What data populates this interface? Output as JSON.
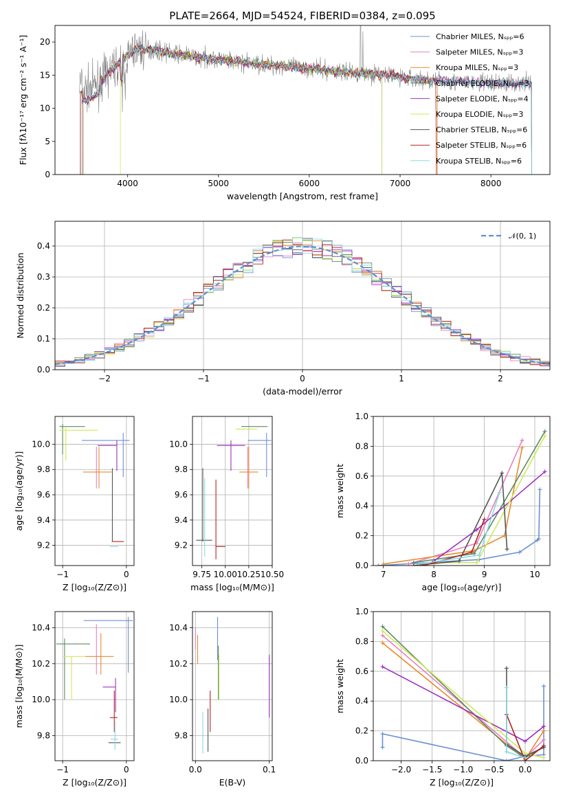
{
  "colors": [
    "#6b8fd6",
    "#e87fbf",
    "#e8892e",
    "#5e8a62",
    "#9b30c0",
    "#cde85a",
    "#555555",
    "#b22222",
    "#88d8e0"
  ],
  "chart_data": [
    {
      "id": "spectrum",
      "type": "line",
      "title": "PLATE=2664, MJD=54524, FIBERID=0384, z=0.095",
      "xlabel": "wavelength [Angstrom, rest frame]",
      "ylabel": "Flux [fλ10⁻¹⁷ erg cm⁻² s⁻¹ A⁻¹]",
      "xlim": [
        3200,
        8650
      ],
      "ylim": [
        0,
        22.5
      ],
      "xticks": [
        4000,
        5000,
        6000,
        7000,
        8000
      ],
      "yticks": [
        0,
        5,
        10,
        15,
        20
      ],
      "grid": false,
      "legend_position": "top-right",
      "legend": [
        "Chabrier MILES, Nₛₚₚ=6",
        "Salpeter MILES, Nₛₚₚ=3",
        "Kroupa MILES, Nₛₚₚ=3",
        "Chabrier ELODIE, Nₛₚₚ=3",
        "Salpeter ELODIE, Nₛₚₚ=4",
        "Kroupa ELODIE, Nₛₚₚ=3",
        "Chabrier STELIB, Nₛₚₚ=6",
        "Salpeter STELIB, Nₛₚₚ=6",
        "Kroupa STELIB, Nₛₚₚ=6"
      ],
      "continuum": {
        "x": [
          3500,
          3600,
          3700,
          3800,
          3950,
          4100,
          4300,
          4600,
          4900,
          5200,
          5600,
          6000,
          6300,
          6600,
          6900,
          7200,
          7600,
          8000,
          8450
        ],
        "y": [
          12.5,
          13.0,
          14.0,
          15.5,
          17.5,
          19.0,
          18.8,
          18.0,
          17.5,
          17.0,
          16.5,
          16.0,
          15.5,
          15.3,
          15.0,
          14.3,
          14.0,
          13.8,
          13.8
        ]
      },
      "model_ranges": [
        [
          3510,
          6800
        ],
        [
          3510,
          8450
        ],
        [
          3510,
          7410
        ],
        [
          3480,
          8450
        ],
        [
          3500,
          8450
        ],
        [
          3920,
          6800
        ],
        [
          3500,
          8450
        ],
        [
          3480,
          7400
        ],
        [
          3500,
          8450
        ]
      ]
    },
    {
      "id": "residual-histogram",
      "type": "bar",
      "xlabel": "(data-model)/error",
      "ylabel": "Normed distribution",
      "xlim": [
        -2.5,
        2.5
      ],
      "ylim": [
        0,
        0.48
      ],
      "xticks": [
        -2,
        -1,
        0,
        1,
        2
      ],
      "yticks": [
        0.0,
        0.1,
        0.2,
        0.3,
        0.4
      ],
      "grid": true,
      "legend_position": "top-right",
      "legend": [
        "𝒩(0, 1)"
      ],
      "bin_width": 0.1
    },
    {
      "id": "age-vs-z",
      "type": "scatter",
      "xlabel": "Z [log₁₀(Z/Z⊙)]",
      "ylabel": "age  [log₁₀(age/yr)]",
      "xlim": [
        -1.12,
        0.12
      ],
      "ylim": [
        9.04,
        10.22
      ],
      "xticks": [
        -1,
        0
      ],
      "yticks": [
        9.2,
        9.4,
        9.6,
        9.8,
        10.0
      ],
      "grid": true,
      "points": [
        {
          "x": -0.05,
          "y": 10.03,
          "xerr": [
            0.65,
            0.1
          ],
          "yerr": [
            0.29,
            0.06
          ]
        },
        {
          "x": -0.47,
          "y": 9.78,
          "xerr": [
            0.0,
            0.0
          ],
          "yerr": [
            0.13,
            0.2
          ]
        },
        {
          "x": -0.43,
          "y": 9.78,
          "xerr": [
            0.25,
            0.2
          ],
          "yerr": [
            0.13,
            0.2
          ]
        },
        {
          "x": -1.0,
          "y": 10.14,
          "xerr": [
            0.05,
            0.35
          ],
          "yerr": [
            0.22,
            0.02
          ]
        },
        {
          "x": -0.15,
          "y": 9.99,
          "xerr": [
            0.3,
            0.0
          ],
          "yerr": [
            0.2,
            0.04
          ]
        },
        {
          "x": -0.95,
          "y": 10.11,
          "xerr": [
            0.1,
            0.5
          ],
          "yerr": [
            0.24,
            0.03
          ]
        },
        {
          "x": -0.22,
          "y": 9.24,
          "xerr": [
            0.0,
            0.0
          ],
          "yerr": [
            0.01,
            0.57
          ]
        },
        {
          "x": -0.16,
          "y": 9.23,
          "xerr": [
            0.07,
            0.12
          ],
          "yerr": [
            0.0,
            0.0
          ]
        },
        {
          "x": -0.18,
          "y": 9.19,
          "xerr": [
            0.08,
            0.05
          ],
          "yerr": [
            0.0,
            0.0
          ]
        }
      ]
    },
    {
      "id": "age-vs-mass",
      "type": "scatter",
      "xlabel": "mass [log₁₀(M/M⊙)]",
      "ylabel": "",
      "xlim": [
        9.65,
        10.5
      ],
      "ylim": [
        9.04,
        10.22
      ],
      "xticks": [
        9.75,
        10.0,
        10.25,
        10.5
      ],
      "yticks": [
        9.2,
        9.4,
        9.6,
        9.8,
        10.0
      ],
      "grid": true,
      "points": [
        {
          "x": 10.44,
          "y": 10.03,
          "xerr": [
            0.2,
            0.05
          ],
          "yerr": [
            0.29,
            0.06
          ]
        },
        {
          "x": 10.24,
          "y": 9.78,
          "xerr": [
            0.0,
            0.0
          ],
          "yerr": [
            0.13,
            0.2
          ]
        },
        {
          "x": 10.25,
          "y": 9.78,
          "xerr": [
            0.1,
            0.1
          ],
          "yerr": [
            0.13,
            0.2
          ]
        },
        {
          "x": 10.3,
          "y": 10.14,
          "xerr": [
            0.13,
            0.15
          ],
          "yerr": [
            0.0,
            0.0
          ]
        },
        {
          "x": 10.06,
          "y": 9.99,
          "xerr": [
            0.15,
            0.15
          ],
          "yerr": [
            0.2,
            0.04
          ]
        },
        {
          "x": 10.24,
          "y": 10.12,
          "xerr": [
            0.13,
            0.1
          ],
          "yerr": [
            0.0,
            0.0
          ]
        },
        {
          "x": 9.76,
          "y": 9.24,
          "xerr": [
            0.07,
            0.1
          ],
          "yerr": [
            0.01,
            0.57
          ]
        },
        {
          "x": 9.9,
          "y": 9.19,
          "xerr": [
            0.0,
            0.1
          ],
          "yerr": [
            0.1,
            0.53
          ]
        },
        {
          "x": 9.78,
          "y": 9.19,
          "xerr": [
            0.0,
            0.0
          ],
          "yerr": [
            0.08,
            0.54
          ]
        }
      ]
    },
    {
      "id": "mass-weight-vs-age",
      "type": "line",
      "xlabel": "age  [log₁₀(age/yr)]",
      "ylabel": "mass weight",
      "xlim": [
        6.8,
        10.3
      ],
      "ylim": [
        0,
        1.0
      ],
      "xticks": [
        7,
        8,
        9,
        10
      ],
      "yticks": [
        0.0,
        0.2,
        0.4,
        0.6,
        0.8,
        1.0
      ],
      "grid": true,
      "series": [
        {
          "x": [
            6.9,
            8.9,
            9.7,
            10.05,
            10.08,
            10.1
          ],
          "y": [
            0.0,
            0.04,
            0.09,
            0.17,
            0.18,
            0.51
          ]
        },
        {
          "x": [
            7.5,
            8.85,
            9.75
          ],
          "y": [
            0.01,
            0.15,
            0.84
          ]
        },
        {
          "x": [
            7.0,
            8.8,
            9.4,
            9.75
          ],
          "y": [
            0.01,
            0.1,
            0.2,
            0.79
          ]
        },
        {
          "x": [
            7.6,
            8.8,
            10.2
          ],
          "y": [
            0.02,
            0.08,
            0.9
          ]
        },
        {
          "x": [
            8.0,
            8.85,
            10.2
          ],
          "y": [
            0.03,
            0.24,
            0.63
          ]
        },
        {
          "x": [
            8.0,
            8.85,
            10.2
          ],
          "y": [
            0.02,
            0.02,
            0.87
          ]
        },
        {
          "x": [
            7.6,
            8.5,
            9.35,
            9.45
          ],
          "y": [
            0.0,
            0.03,
            0.62,
            0.11
          ]
        },
        {
          "x": [
            7.8,
            8.75,
            9.0
          ],
          "y": [
            0.0,
            0.09,
            0.31
          ]
        },
        {
          "x": [
            7.7,
            8.9,
            9.3
          ],
          "y": [
            0.01,
            0.07,
            0.49
          ]
        }
      ]
    },
    {
      "id": "mass-vs-z",
      "type": "scatter",
      "xlabel": "Z [log₁₀(Z/Z⊙)]",
      "ylabel": "mass [log₁₀(M/M⊙)]",
      "xlim": [
        -1.12,
        0.12
      ],
      "ylim": [
        9.66,
        10.49
      ],
      "xticks": [
        -1,
        0
      ],
      "yticks": [
        9.8,
        10.0,
        10.2,
        10.4
      ],
      "grid": true,
      "points": [
        {
          "x": 0.03,
          "y": 10.44,
          "xerr": [
            0.7,
            0.07
          ],
          "yerr": [
            0.29,
            0.02
          ]
        },
        {
          "x": -0.47,
          "y": 10.24,
          "xerr": [
            0.0,
            0.0
          ],
          "yerr": [
            0.1,
            0.18
          ]
        },
        {
          "x": -0.4,
          "y": 10.24,
          "xerr": [
            0.25,
            0.2
          ],
          "yerr": [
            0.1,
            0.13
          ]
        },
        {
          "x": -0.97,
          "y": 10.31,
          "xerr": [
            0.13,
            0.4
          ],
          "yerr": [
            0.31,
            0.03
          ]
        },
        {
          "x": -0.17,
          "y": 10.07,
          "xerr": [
            0.2,
            0.0
          ],
          "yerr": [
            0.14,
            0.05
          ]
        },
        {
          "x": -0.86,
          "y": 10.24,
          "xerr": [
            0.13,
            0.2
          ],
          "yerr": [
            0.24,
            0.0
          ]
        },
        {
          "x": -0.21,
          "y": 9.76,
          "xerr": [
            0.07,
            0.12
          ],
          "yerr": [
            0.0,
            0.0
          ]
        },
        {
          "x": -0.19,
          "y": 9.9,
          "xerr": [
            0.07,
            0.05
          ],
          "yerr": [
            0.08,
            0.15
          ]
        },
        {
          "x": -0.18,
          "y": 9.78,
          "xerr": [
            0.07,
            0.05
          ],
          "yerr": [
            0.06,
            0.1
          ]
        }
      ]
    },
    {
      "id": "mass-vs-ebv",
      "type": "scatter",
      "xlabel": "E(B-V)",
      "ylabel": "",
      "xlim": [
        -0.004,
        0.104
      ],
      "ylim": [
        9.66,
        10.49
      ],
      "xticks": [
        0.0,
        0.1
      ],
      "yticks": [
        9.8,
        10.0,
        10.2,
        10.4
      ],
      "grid": true,
      "points": [
        {
          "x": 0.03,
          "y": 10.46,
          "xerr": [
            0,
            0
          ],
          "yerr": [
            0.24,
            0.0
          ]
        },
        {
          "x": 0.0,
          "y": 10.4,
          "xerr": [
            0,
            0
          ],
          "yerr": [
            0.12,
            0.0
          ]
        },
        {
          "x": 0.003,
          "y": 10.36,
          "xerr": [
            0,
            0
          ],
          "yerr": [
            0.16,
            0.0
          ]
        },
        {
          "x": 0.031,
          "y": 10.3,
          "xerr": [
            0,
            0
          ],
          "yerr": [
            0.3,
            0.0
          ]
        },
        {
          "x": 0.1,
          "y": 10.25,
          "xerr": [
            0,
            0
          ],
          "yerr": [
            0.35,
            0.0
          ]
        },
        {
          "x": 0.032,
          "y": 10.25,
          "xerr": [
            0,
            0
          ],
          "yerr": [
            0.25,
            0.0
          ]
        },
        {
          "x": 0.017,
          "y": 9.95,
          "xerr": [
            0,
            0
          ],
          "yerr": [
            0.24,
            0.0
          ]
        },
        {
          "x": 0.02,
          "y": 10.05,
          "xerr": [
            0,
            0
          ],
          "yerr": [
            0.23,
            0.0
          ]
        },
        {
          "x": 0.01,
          "y": 9.93,
          "xerr": [
            0,
            0
          ],
          "yerr": [
            0.23,
            0.0
          ]
        }
      ]
    },
    {
      "id": "mass-weight-vs-z",
      "type": "line",
      "xlabel": "Z [log₁₀(Z/Z⊙)]",
      "ylabel": "mass weight",
      "xlim": [
        -2.45,
        0.4
      ],
      "ylim": [
        0,
        1.0
      ],
      "xticks": [
        -2.0,
        -1.5,
        -1.0,
        -0.5,
        0.0
      ],
      "yticks": [
        0.0,
        0.2,
        0.4,
        0.6,
        0.8,
        1.0
      ],
      "grid": true,
      "series": [
        {
          "x": [
            -2.3,
            -2.3,
            -0.3,
            0.0,
            0.3,
            0.3
          ],
          "y": [
            0.09,
            0.18,
            0.0,
            0.03,
            0.04,
            0.5
          ]
        },
        {
          "x": [
            -2.3,
            0.0,
            0.3
          ],
          "y": [
            0.84,
            0.02,
            0.14
          ]
        },
        {
          "x": [
            -2.3,
            0.0,
            0.3
          ],
          "y": [
            0.79,
            0.01,
            0.2
          ]
        },
        {
          "x": [
            -2.3,
            -0.3,
            0.0,
            0.3
          ],
          "y": [
            0.9,
            0.1,
            0.02,
            0.09
          ]
        },
        {
          "x": [
            -2.3,
            0.0,
            0.3
          ],
          "y": [
            0.63,
            0.13,
            0.23
          ]
        },
        {
          "x": [
            -2.3,
            0.0,
            0.3
          ],
          "y": [
            0.87,
            0.05,
            0.02
          ]
        },
        {
          "x": [
            -0.3,
            -0.3,
            0.0,
            0.3
          ],
          "y": [
            0.62,
            0.11,
            0.03,
            0.09
          ]
        },
        {
          "x": [
            -0.3,
            0.0,
            0.3
          ],
          "y": [
            0.31,
            0.0,
            0.1
          ]
        },
        {
          "x": [
            -0.3,
            -0.3,
            0.0
          ],
          "y": [
            0.49,
            0.06,
            0.02
          ]
        }
      ]
    }
  ]
}
